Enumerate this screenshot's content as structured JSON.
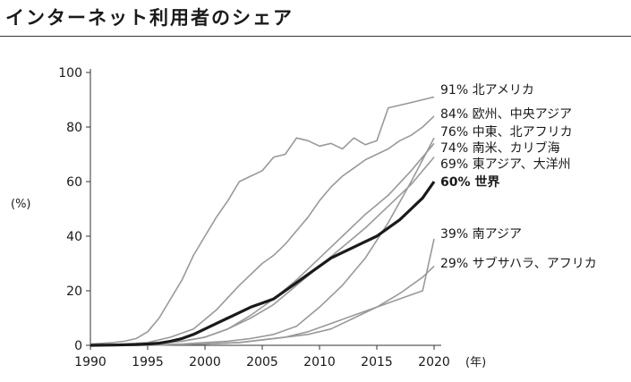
{
  "title": "インターネット利用者のシェア",
  "chart_data": {
    "type": "line",
    "title": "インターネット利用者のシェア",
    "ylabel": "(%)",
    "xlabel": "(年)",
    "xlim": [
      1990,
      2020
    ],
    "ylim": [
      0,
      100
    ],
    "x_ticks": [
      1990,
      1995,
      2000,
      2005,
      2010,
      2015,
      2020
    ],
    "y_ticks": [
      0,
      20,
      40,
      60,
      80,
      100
    ],
    "grid": false,
    "series": [
      {
        "name": "北アメリカ",
        "end_label": "91%",
        "color": "#999999",
        "highlight": false,
        "x": [
          1990,
          1992,
          1993,
          1994,
          1995,
          1996,
          1997,
          1998,
          1999,
          2000,
          2001,
          2002,
          2003,
          2004,
          2005,
          2006,
          2007,
          2008,
          2009,
          2010,
          2011,
          2012,
          2013,
          2014,
          2015,
          2016,
          2017,
          2018,
          2019,
          2020
        ],
        "y": [
          0.5,
          1,
          1.5,
          2.5,
          5,
          10,
          17,
          24,
          33,
          40,
          47,
          53,
          60,
          62,
          64,
          69,
          70,
          76,
          75,
          73,
          74,
          72,
          76,
          73.5,
          75,
          87,
          88,
          89,
          90,
          91
        ]
      },
      {
        "name": "欧州、中央アジア",
        "end_label": "84%",
        "color": "#999999",
        "highlight": false,
        "x": [
          1990,
          1993,
          1995,
          1997,
          1999,
          2001,
          2003,
          2005,
          2006,
          2007,
          2008,
          2009,
          2010,
          2011,
          2012,
          2013,
          2014,
          2015,
          2016,
          2017,
          2018,
          2019,
          2020
        ],
        "y": [
          0,
          0.5,
          1,
          3,
          6,
          13,
          22,
          30,
          33,
          37,
          42,
          47,
          53,
          58,
          62,
          65,
          68,
          70,
          72,
          75,
          77,
          80,
          84
        ]
      },
      {
        "name": "中東、北アフリカ",
        "end_label": "76%",
        "color": "#999999",
        "highlight": false,
        "x": [
          1990,
          1995,
          1998,
          2000,
          2002,
          2004,
          2006,
          2008,
          2010,
          2012,
          2014,
          2016,
          2018,
          2020
        ],
        "y": [
          0,
          0.2,
          0.5,
          1,
          1.5,
          2.5,
          4,
          7,
          14,
          22,
          32,
          45,
          60,
          76
        ]
      },
      {
        "name": "南米、カリブ海",
        "end_label": "74%",
        "color": "#999999",
        "highlight": false,
        "x": [
          1990,
          1995,
          1998,
          2000,
          2002,
          2004,
          2006,
          2008,
          2010,
          2012,
          2014,
          2016,
          2018,
          2020
        ],
        "y": [
          0,
          0.3,
          1.5,
          3,
          6,
          11,
          17,
          24,
          32,
          40,
          48,
          55,
          64,
          74
        ]
      },
      {
        "name": "東アジア、大洋州",
        "end_label": "69%",
        "color": "#999999",
        "highlight": false,
        "x": [
          1990,
          1995,
          1998,
          2000,
          2002,
          2004,
          2006,
          2008,
          2010,
          2012,
          2014,
          2016,
          2018,
          2020
        ],
        "y": [
          0,
          0.5,
          1.5,
          3,
          6,
          10,
          15,
          22,
          29,
          36,
          43,
          51,
          59,
          69
        ]
      },
      {
        "name": "南アジア",
        "end_label": "39%",
        "color": "#999999",
        "highlight": false,
        "x": [
          1990,
          1995,
          2000,
          2003,
          2005,
          2007,
          2009,
          2011,
          2013,
          2015,
          2017,
          2019,
          2020
        ],
        "y": [
          0,
          0,
          0.5,
          1,
          2,
          3,
          5,
          8,
          11,
          14,
          17,
          20,
          39
        ]
      },
      {
        "name": "サブサハラ、アフリカ",
        "end_label": "29%",
        "color": "#999999",
        "highlight": false,
        "x": [
          1990,
          1995,
          2000,
          2003,
          2005,
          2007,
          2009,
          2011,
          2013,
          2015,
          2017,
          2019,
          2020
        ],
        "y": [
          0,
          0.1,
          0.5,
          1,
          2,
          3,
          4,
          6,
          10,
          14,
          19,
          25,
          29
        ]
      },
      {
        "name": "世界",
        "end_label": "60%",
        "color": "#1a1a1a",
        "highlight": true,
        "x": [
          1990,
          1992,
          1994,
          1995,
          1996,
          1997,
          1998,
          1999,
          2000,
          2001,
          2002,
          2003,
          2004,
          2005,
          2006,
          2007,
          2008,
          2009,
          2010,
          2011,
          2012,
          2013,
          2014,
          2015,
          2016,
          2017,
          2018,
          2019,
          2020
        ],
        "y": [
          0,
          0.1,
          0.3,
          0.5,
          0.8,
          1.5,
          2.5,
          4,
          6,
          8,
          10,
          12,
          14,
          15.5,
          17,
          20,
          23,
          26,
          29,
          32,
          34,
          36,
          38,
          40,
          43,
          46,
          50,
          54,
          60
        ]
      }
    ]
  }
}
